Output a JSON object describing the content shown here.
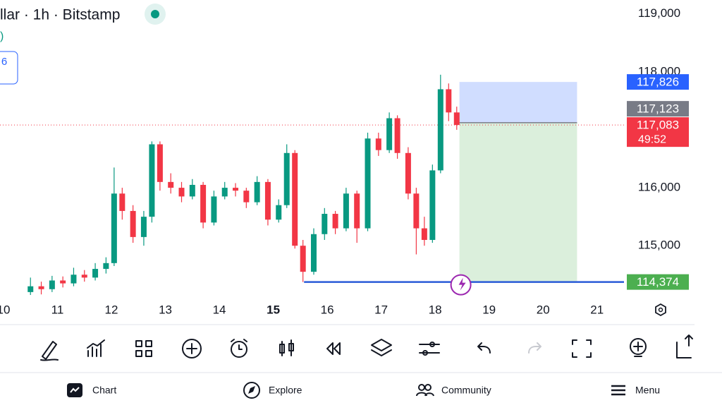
{
  "header": {
    "title": "llar · 1h · Bitstamp",
    "subtitle": ")",
    "badge": "6"
  },
  "chart_data": {
    "type": "candlestick",
    "x": [
      10.5,
      10.7,
      10.9,
      11.1,
      11.3,
      11.5,
      11.7,
      11.9,
      12.05,
      12.2,
      12.4,
      12.6,
      12.75,
      12.9,
      13.1,
      13.3,
      13.5,
      13.7,
      13.9,
      14.1,
      14.3,
      14.5,
      14.7,
      14.9,
      15.1,
      15.25,
      15.4,
      15.55,
      15.75,
      15.95,
      16.15,
      16.35,
      16.55,
      16.75,
      16.95,
      17.15,
      17.3,
      17.5,
      17.65,
      17.8,
      17.95,
      18.1,
      18.25,
      18.4
    ],
    "open": [
      114200,
      114300,
      114250,
      114400,
      114350,
      114500,
      114450,
      114600,
      114700,
      115900,
      115600,
      115150,
      115500,
      116750,
      116100,
      116000,
      115850,
      116050,
      115400,
      115850,
      116000,
      115950,
      115750,
      116100,
      115450,
      115700,
      116600,
      115000,
      114550,
      115200,
      115550,
      115300,
      115900,
      115300,
      116850,
      116650,
      117200,
      116600,
      115900,
      115300,
      115100,
      116300,
      117700,
      117300
    ],
    "high": [
      114450,
      114380,
      114480,
      114470,
      114620,
      114580,
      114700,
      114800,
      116350,
      116000,
      115700,
      115600,
      116800,
      116800,
      116250,
      116100,
      116150,
      116100,
      115950,
      116100,
      116080,
      116000,
      116200,
      116150,
      115800,
      116750,
      116650,
      115100,
      115300,
      115650,
      115600,
      116000,
      115950,
      116950,
      116950,
      117300,
      117250,
      116700,
      116000,
      115500,
      116400,
      117950,
      117800,
      117400
    ],
    "low": [
      114150,
      114160,
      114200,
      114280,
      114300,
      114380,
      114400,
      114520,
      114650,
      115450,
      115050,
      115000,
      115400,
      115950,
      115900,
      115750,
      115800,
      115300,
      115350,
      115800,
      115850,
      115650,
      115700,
      115350,
      115400,
      115650,
      114950,
      114374,
      114500,
      115100,
      115200,
      115250,
      115050,
      115250,
      116550,
      116600,
      116500,
      115800,
      114850,
      115000,
      115050,
      116250,
      117150,
      117000
    ],
    "close": [
      114300,
      114250,
      114400,
      114350,
      114500,
      114450,
      114600,
      114700,
      115900,
      115600,
      115150,
      115500,
      116750,
      116100,
      116000,
      115850,
      116050,
      115400,
      115850,
      116000,
      115950,
      115750,
      116100,
      115450,
      115700,
      116600,
      115000,
      114550,
      115200,
      115550,
      115300,
      115900,
      115300,
      116850,
      116650,
      117200,
      116600,
      115900,
      115300,
      115100,
      116300,
      117700,
      117300,
      117083
    ],
    "up_color": "#089981",
    "down_color": "#f23645",
    "xlim": [
      9.935,
      21.5
    ],
    "xticks": [
      10,
      11,
      12,
      13,
      14,
      15,
      16,
      17,
      18,
      19,
      20,
      21
    ],
    "bold_xtick": 15,
    "ylim": [
      114150,
      119240
    ],
    "yticks": [
      {
        "value": 119000,
        "label": "119,000"
      },
      {
        "value": 118000,
        "label": "118,000"
      },
      {
        "value": 116000,
        "label": "116,000"
      },
      {
        "value": 115000,
        "label": "115,000"
      }
    ],
    "last_price": {
      "value": 117083,
      "label": "117,083",
      "countdown": "49:52",
      "color": "#f23645"
    },
    "position": {
      "x_start": 18.45,
      "x_end": 20.63,
      "target": 117826,
      "target_label": "117,826",
      "target_color": "#2962ff",
      "entry": 117123,
      "entry_label": "117,123",
      "entry_color": "#787b86"
    },
    "horizontal_line": {
      "value": 114374,
      "label": "114,374",
      "x_start": 15.57,
      "color": "#2a5bd7",
      "tag_color": "#4caf50"
    }
  },
  "nav": {
    "items": [
      "Chart",
      "Explore",
      "Community",
      "Menu"
    ]
  }
}
